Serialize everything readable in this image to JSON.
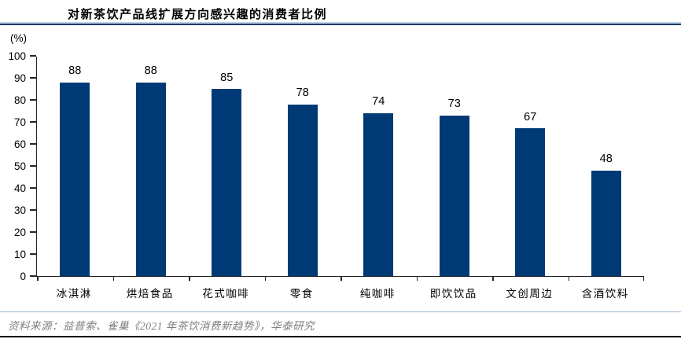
{
  "header": {
    "title": "对新茶饮产品线扩展方向感兴趣的消费者比例"
  },
  "footer": {
    "source": "资料来源：益普索、雀巢《2021 年茶饮消费新趋势》，华泰研究"
  },
  "colors": {
    "bar": "#003A76",
    "title_rule_light": "#BDD5EE",
    "title_rule_dark": "#1F3864",
    "axis": "#262626",
    "source_divider": "#9FB6D4",
    "source_text": "#7F7F7F",
    "bottom_border": "#000000"
  },
  "chart_data": {
    "type": "bar",
    "title": "对新茶饮产品线扩展方向感兴趣的消费者比例",
    "unit_label": "(%)",
    "categories": [
      "冰淇淋",
      "烘焙食品",
      "花式咖啡",
      "零食",
      "纯咖啡",
      "即饮饮品",
      "文创周边",
      "含酒饮料"
    ],
    "values": [
      88,
      88,
      85,
      78,
      74,
      73,
      67,
      48
    ],
    "xlabel": "",
    "ylabel": "(%)",
    "ylim": [
      0,
      100
    ],
    "ytick_step": 10,
    "grid": false,
    "legend": null,
    "value_labels": true,
    "bar_color": "#003A76"
  }
}
